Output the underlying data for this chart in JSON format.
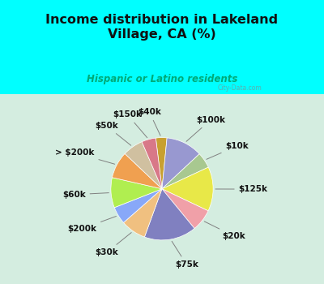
{
  "title": "Income distribution in Lakeland\nVillage, CA (%)",
  "subtitle": "Hispanic or Latino residents",
  "title_color": "#111111",
  "subtitle_color": "#00aa77",
  "bg_top": "#00ffff",
  "bg_chart": "#d4ede0",
  "watermark": "City-Data.com",
  "labels": [
    "$40k",
    "$100k",
    "$10k",
    "$125k",
    "$20k",
    "$75k",
    "$30k",
    "$200k",
    "$60k",
    "> $200k",
    "$50k",
    "$150k"
  ],
  "values": [
    3.5,
    11.5,
    5.0,
    14.0,
    7.0,
    16.5,
    8.0,
    5.5,
    9.5,
    8.5,
    6.5,
    4.5
  ],
  "colors": [
    "#c8a030",
    "#9898d0",
    "#a8c890",
    "#e8e848",
    "#f0a0a8",
    "#8080c0",
    "#f0c080",
    "#88a8f8",
    "#b0ee50",
    "#f0a050",
    "#d0c0a0",
    "#d87888"
  ],
  "startangle": 97,
  "label_fontsize": 7.5,
  "figsize": [
    4.0,
    3.5
  ],
  "dpi": 100
}
